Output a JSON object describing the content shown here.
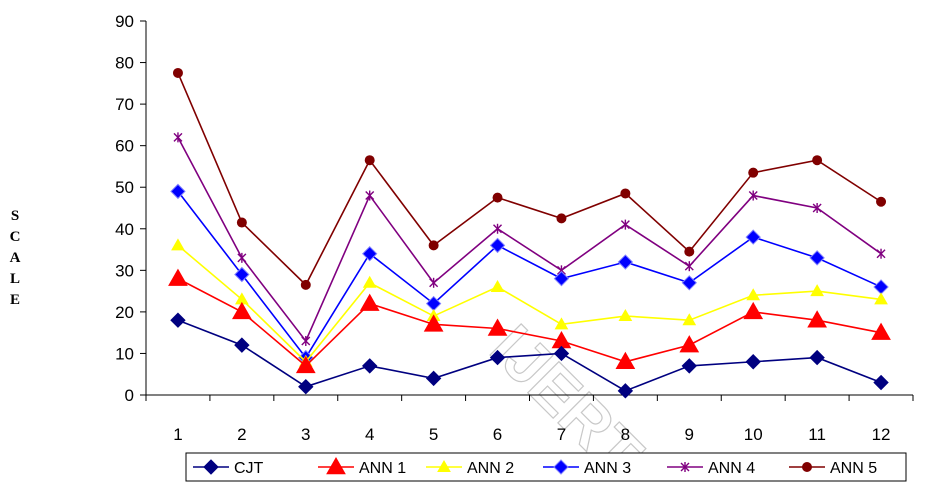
{
  "chart_data": {
    "type": "line",
    "ylabel": "SCALE",
    "ylim": [
      0,
      90
    ],
    "yticks": [
      "0",
      "10",
      "20",
      "30",
      "40",
      "50",
      "60",
      "70",
      "80",
      "90"
    ],
    "categories": [
      "1",
      "2",
      "3",
      "4",
      "5",
      "6",
      "7",
      "8",
      "9",
      "10",
      "11",
      "12"
    ],
    "watermark": "IJERT",
    "legend_position": "bottom",
    "series": [
      {
        "name": "CJT",
        "color": "#000080",
        "marker": "diamond",
        "values": [
          18,
          12,
          2,
          7,
          4,
          9,
          10,
          1,
          7,
          8,
          9,
          3
        ]
      },
      {
        "name": "ANN 1",
        "color": "#ff0000",
        "marker": "triangle",
        "values": [
          28,
          20,
          7,
          22,
          17,
          16,
          13,
          8,
          12,
          20,
          18,
          15
        ]
      },
      {
        "name": "ANN 2",
        "color": "#ffff00",
        "marker": "triangle-small",
        "values": [
          36,
          23,
          8,
          27,
          19,
          26,
          17,
          19,
          18,
          24,
          25,
          23
        ]
      },
      {
        "name": "ANN 3",
        "color": "#0000ff",
        "marker": "diamond",
        "values": [
          49,
          29,
          9,
          34,
          22,
          36,
          28,
          32,
          27,
          38,
          33,
          26
        ]
      },
      {
        "name": "ANN 4",
        "color": "#800080",
        "marker": "asterisk",
        "values": [
          62,
          33,
          13,
          48,
          27,
          40,
          30,
          41,
          31,
          48,
          45,
          34
        ]
      },
      {
        "name": "ANN 5",
        "color": "#800000",
        "marker": "circle",
        "values": [
          77.5,
          41.5,
          26.5,
          56.5,
          36,
          47.5,
          42.5,
          48.5,
          34.5,
          53.5,
          56.5,
          46.5
        ]
      }
    ]
  }
}
